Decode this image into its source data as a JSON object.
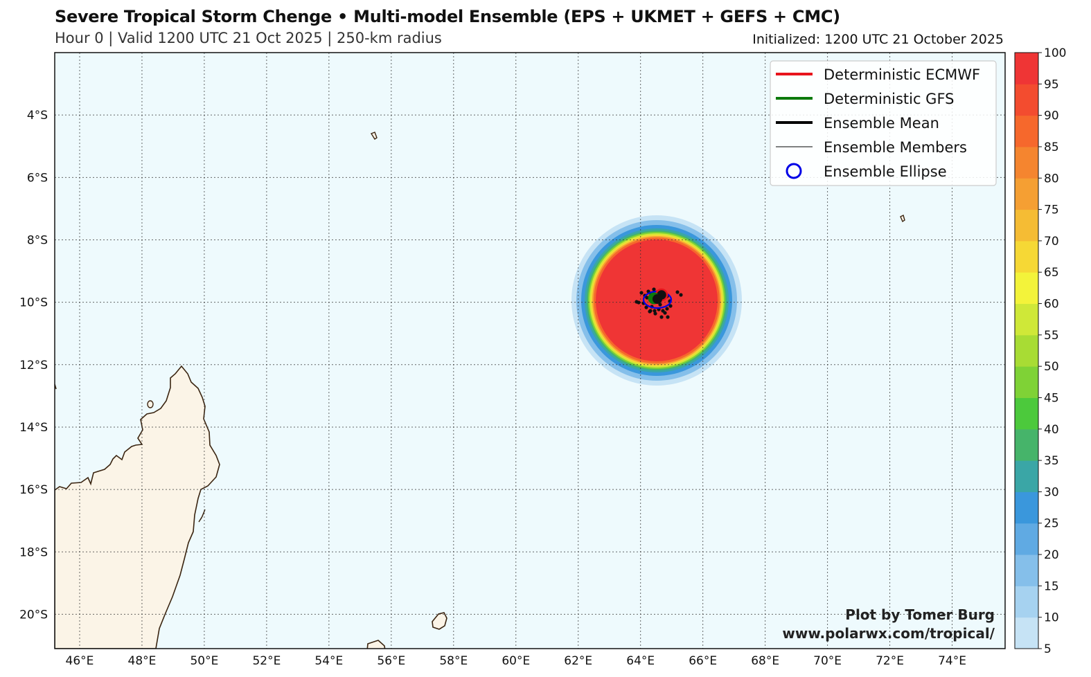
{
  "header": {
    "title": "Severe Tropical Storm Chenge • Multi-model Ensemble (EPS + UKMET + GEFS + CMC)",
    "subtitle": "Hour 0 | Valid 1200 UTC 21 Oct 2025 | 250-km radius",
    "initialized": "Initialized: 1200 UTC 21 October 2025"
  },
  "map": {
    "lon_range": [
      45.2,
      75.7
    ],
    "lat_range": [
      -21.1,
      -2.0
    ],
    "lon_ticks": [
      "46°E",
      "48°E",
      "50°E",
      "52°E",
      "54°E",
      "56°E",
      "58°E",
      "60°E",
      "62°E",
      "64°E",
      "66°E",
      "68°E",
      "70°E",
      "72°E",
      "74°E"
    ],
    "lat_ticks": [
      "4°S",
      "6°S",
      "8°S",
      "10°S",
      "12°S",
      "14°S",
      "16°S",
      "18°S",
      "20°S"
    ],
    "ocean_color": "#eefafd",
    "land_color": "#fbf4e7",
    "coast_color": "#3a2410",
    "storm_center": {
      "lon": 64.5,
      "lat": -10.0
    }
  },
  "legend": {
    "items": [
      {
        "label": "Deterministic ECMWF",
        "color": "#e8141c",
        "style": "thick-line"
      },
      {
        "label": "Deterministic GFS",
        "color": "#0b7a0b",
        "style": "thick-line"
      },
      {
        "label": "Ensemble Mean",
        "color": "#000000",
        "style": "thick-line"
      },
      {
        "label": "Ensemble Members",
        "color": "#000000",
        "style": "thin-line"
      },
      {
        "label": "Ensemble Ellipse",
        "color": "#0000e6",
        "style": "circle"
      }
    ]
  },
  "colorbar": {
    "ticks": [
      "5",
      "10",
      "15",
      "20",
      "25",
      "30",
      "35",
      "40",
      "45",
      "50",
      "55",
      "60",
      "65",
      "70",
      "75",
      "80",
      "85",
      "90",
      "95",
      "100"
    ],
    "colors": [
      "#c6e3f5",
      "#a6d2f0",
      "#85bfea",
      "#60aae3",
      "#3a97dc",
      "#3aa6a6",
      "#46b46a",
      "#4cc93c",
      "#7fd236",
      "#a8dc34",
      "#cfe838",
      "#f3f33a",
      "#f6d835",
      "#f5bc34",
      "#f59f33",
      "#f5852f",
      "#f6682c",
      "#f34c2f",
      "#ef3535"
    ]
  },
  "credit": {
    "line1": "Plot by Tomer Burg",
    "line2": "www.polarwx.com/tropical/"
  }
}
